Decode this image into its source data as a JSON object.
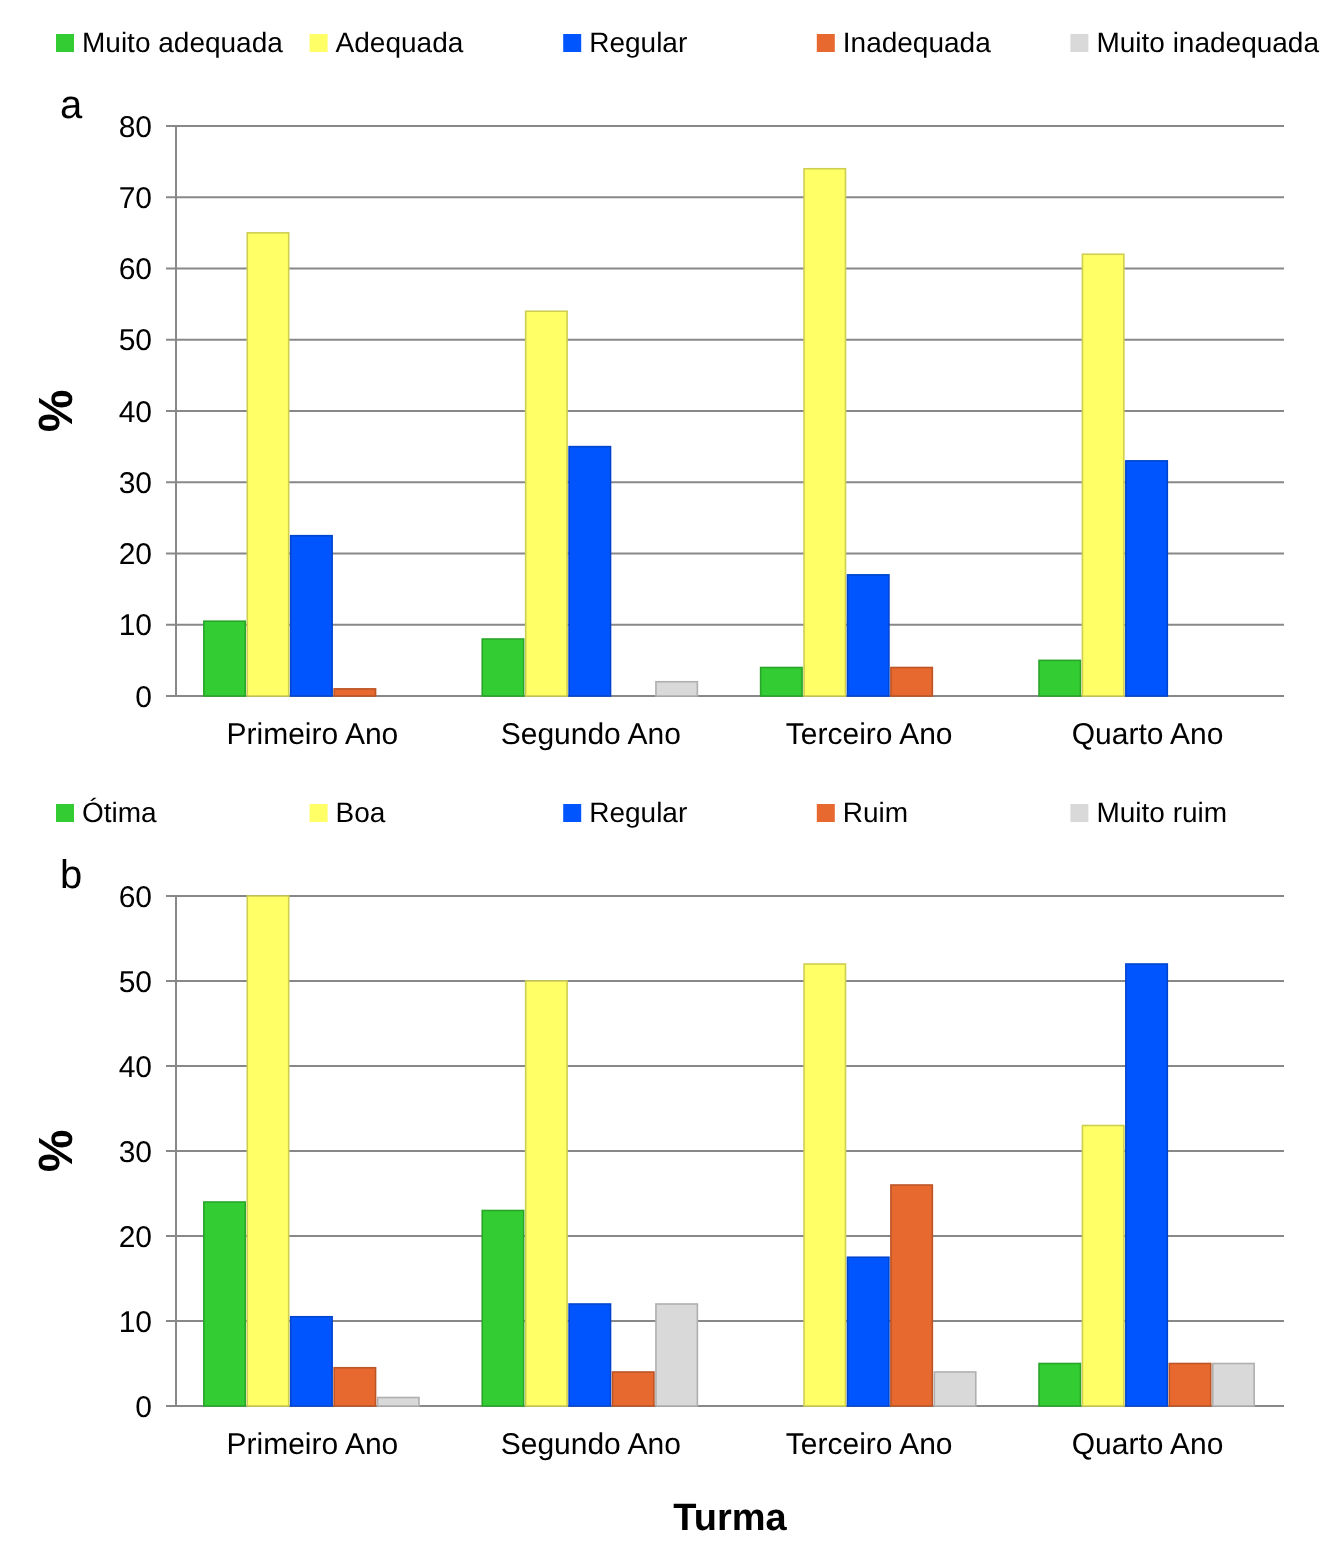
{
  "chart_data": [
    {
      "type": "bar",
      "title": "a",
      "ylabel": "%",
      "categories": [
        "Primeiro Ano",
        "Segundo Ano",
        "Terceiro Ano",
        "Quarto Ano"
      ],
      "ylim": [
        0,
        80
      ],
      "yticks": [
        0,
        10,
        20,
        30,
        40,
        50,
        60,
        70,
        80
      ],
      "grid": "y",
      "legend": "top",
      "series": [
        {
          "name": "Muito adequada",
          "color": "#33cc33",
          "values": [
            10.5,
            8,
            4,
            5
          ]
        },
        {
          "name": "Adequada",
          "color": "#ffff66",
          "values": [
            65,
            54,
            74,
            62
          ]
        },
        {
          "name": "Regular",
          "color": "#0055ff",
          "values": [
            22.5,
            35,
            17,
            33
          ]
        },
        {
          "name": "Inadequada",
          "color": "#e8692f",
          "values": [
            1,
            0,
            4,
            0
          ]
        },
        {
          "name": "Muito inadequada",
          "color": "#d9d9d9",
          "values": [
            0,
            2,
            0,
            0
          ]
        }
      ]
    },
    {
      "type": "bar",
      "title": "b",
      "ylabel": "%",
      "xlabel": "Turma",
      "categories": [
        "Primeiro Ano",
        "Segundo Ano",
        "Terceiro Ano",
        "Quarto Ano"
      ],
      "ylim": [
        0,
        60
      ],
      "yticks": [
        0,
        10,
        20,
        30,
        40,
        50,
        60
      ],
      "grid": "y",
      "legend": "top",
      "series": [
        {
          "name": "Ótima",
          "color": "#33cc33",
          "values": [
            24,
            23,
            0,
            5
          ]
        },
        {
          "name": "Boa",
          "color": "#ffff66",
          "values": [
            60,
            50,
            52,
            33
          ]
        },
        {
          "name": "Regular",
          "color": "#0055ff",
          "values": [
            10.5,
            12,
            17.5,
            52
          ]
        },
        {
          "name": "Ruim",
          "color": "#e8692f",
          "values": [
            4.5,
            4,
            26,
            5
          ]
        },
        {
          "name": "Muito ruim",
          "color": "#d9d9d9",
          "values": [
            1,
            12,
            4,
            5
          ]
        }
      ]
    }
  ]
}
